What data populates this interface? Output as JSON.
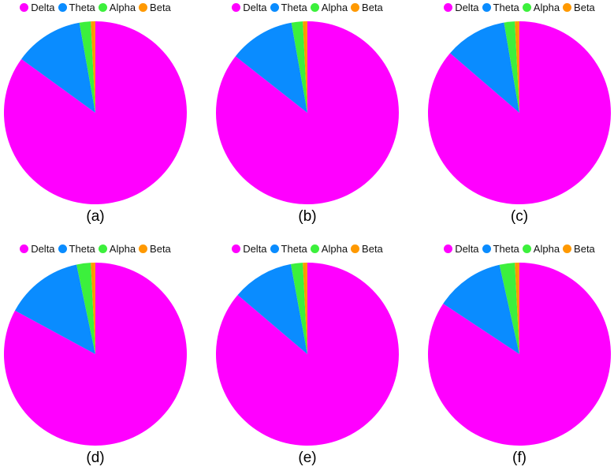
{
  "colors": {
    "Delta": "#ff00ff",
    "Theta": "#0a8cff",
    "Alpha": "#3cf03c",
    "Beta": "#ff9900"
  },
  "chart_data": [
    {
      "type": "pie",
      "caption": "(a)",
      "labels": [
        "Delta",
        "Theta",
        "Alpha",
        "Beta"
      ],
      "values": [
        85.0,
        12.2,
        2.0,
        0.8
      ]
    },
    {
      "type": "pie",
      "caption": "(b)",
      "labels": [
        "Delta",
        "Theta",
        "Alpha",
        "Beta"
      ],
      "values": [
        85.6,
        11.6,
        2.0,
        0.8
      ]
    },
    {
      "type": "pie",
      "caption": "(c)",
      "labels": [
        "Delta",
        "Theta",
        "Alpha",
        "Beta"
      ],
      "values": [
        86.3,
        11.0,
        1.9,
        0.8
      ]
    },
    {
      "type": "pie",
      "caption": "(d)",
      "labels": [
        "Delta",
        "Theta",
        "Alpha",
        "Beta"
      ],
      "values": [
        82.9,
        13.8,
        2.5,
        0.8
      ]
    },
    {
      "type": "pie",
      "caption": "(e)",
      "labels": [
        "Delta",
        "Theta",
        "Alpha",
        "Beta"
      ],
      "values": [
        86.2,
        10.9,
        2.1,
        0.8
      ]
    },
    {
      "type": "pie",
      "caption": "(f)",
      "labels": [
        "Delta",
        "Theta",
        "Alpha",
        "Beta"
      ],
      "values": [
        84.3,
        12.2,
        2.7,
        0.8
      ]
    }
  ]
}
